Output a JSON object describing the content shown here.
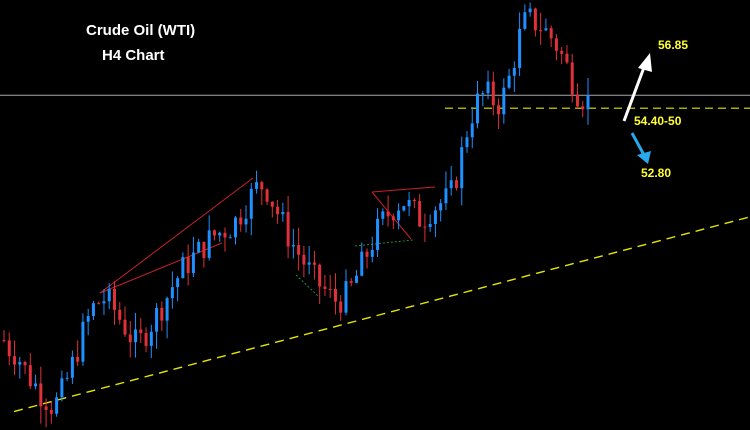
{
  "title": {
    "line1": "Crude Oil (WTI)",
    "line2": "H4 Chart"
  },
  "levels": {
    "target_up": "56.85",
    "pivot": "54.40-50",
    "target_down": "52.80"
  },
  "colors": {
    "background": "#000000",
    "bull_candle": "#1e90ff",
    "bear_candle": "#e0303a",
    "support_line": "#e6e600",
    "current_price_line": "#a9a9a9",
    "pattern_lines": "#c8202a",
    "up_arrow": "#ffffff",
    "down_arrow": "#29a8f0",
    "level_text": "#ffff33"
  },
  "chart_data": {
    "type": "candlestick",
    "symbol": "Crude Oil (WTI)",
    "timeframe": "H4",
    "close_path": [
      47.3,
      47.0,
      46.9,
      46.6,
      46.2,
      46.0,
      45.7,
      45.5,
      45.3,
      45.4,
      45.8,
      46.3,
      46.8,
      47.4,
      47.9,
      48.3,
      48.5,
      48.6,
      48.4,
      48.1,
      47.8,
      47.5,
      47.2,
      47.3,
      47.6,
      47.9,
      48.2,
      48.5,
      48.9,
      49.2,
      49.5,
      49.7,
      49.9,
      50.1,
      50.3,
      50.5,
      50.6,
      50.7,
      50.8,
      51.0,
      51.3,
      51.6,
      51.9,
      52.1,
      52.0,
      51.6,
      51.2,
      50.8,
      50.4,
      50.1,
      49.8,
      49.5,
      49.2,
      49.0,
      48.8,
      48.6,
      48.5,
      48.6,
      48.8,
      49.2,
      49.6,
      50.0,
      50.4,
      50.8,
      51.1,
      51.3,
      51.5,
      51.6,
      51.4,
      51.2,
      51.0,
      51.2,
      51.4,
      51.5,
      51.6,
      51.8,
      52.4,
      53.2,
      54.0,
      54.5,
      54.8,
      54.9,
      54.7,
      54.6,
      54.9,
      55.5,
      56.3,
      57.0,
      57.2,
      57.1,
      57.0,
      56.8,
      56.6,
      56.3,
      55.9,
      55.5,
      55.0,
      54.8,
      54.7
    ],
    "horizontal_levels": [
      {
        "label": "54.40-50",
        "value": 54.45,
        "style": "dashed",
        "color": "#e6e600"
      },
      {
        "label": "current price",
        "value": 54.85,
        "style": "solid",
        "color": "#a9a9a9"
      }
    ],
    "trendlines": [
      {
        "name": "rising support",
        "style": "dashed",
        "color": "#e6e600",
        "from": [
          0,
          45.1
        ],
        "to": [
          103,
          51.1
        ]
      }
    ],
    "projections": [
      {
        "label": "56.85",
        "direction": "up",
        "value": 56.85
      },
      {
        "label": "52.80",
        "direction": "down",
        "value": 52.8
      }
    ],
    "y_range": [
      44.9,
      57.6
    ],
    "grid": false,
    "legend": "none"
  }
}
